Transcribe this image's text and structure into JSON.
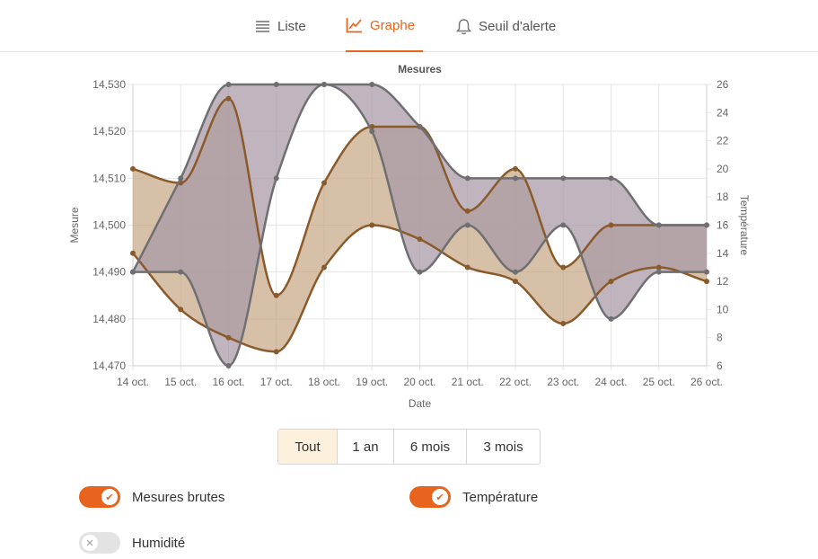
{
  "tabs": [
    {
      "label": "Liste",
      "icon": "list-icon",
      "active": false
    },
    {
      "label": "Graphe",
      "icon": "chart-line-icon",
      "active": true
    },
    {
      "label": "Seuil d'alerte",
      "icon": "bell-icon",
      "active": false
    }
  ],
  "colors": {
    "accent": "#e8641e",
    "temperature_line": "#8b5a2b",
    "temperature_fill": "#c4a27f",
    "mesures_line": "#6f6f72",
    "mesures_fill": "#a898a6",
    "overlap_fill": "#917b74"
  },
  "chart_data": {
    "type": "area",
    "title": "Mesures",
    "xlabel": "Date",
    "ylabel_left": "Mesure",
    "ylabel_right": "Température",
    "categories": [
      "14 oct.",
      "15 oct.",
      "16 oct.",
      "17 oct.",
      "18 oct.",
      "19 oct.",
      "20 oct.",
      "21 oct.",
      "22 oct.",
      "23 oct.",
      "24 oct.",
      "25 oct.",
      "26 oct."
    ],
    "ylim_left": [
      14470,
      14530
    ],
    "yticks_left": [
      "14,470",
      "14,480",
      "14,490",
      "14,500",
      "14,510",
      "14,520",
      "14,530"
    ],
    "ylim_right": [
      6,
      26
    ],
    "yticks_right": [
      "6",
      "8",
      "10",
      "12",
      "14",
      "16",
      "18",
      "20",
      "22",
      "24",
      "26"
    ],
    "grid": true,
    "legend": "none",
    "series": [
      {
        "name": "Mesures brutes",
        "axis": "left",
        "kind": "band",
        "upper": [
          14490,
          14510,
          14530,
          14530,
          14530,
          14530,
          14521,
          14510,
          14510,
          14510,
          14510,
          14500,
          14500
        ],
        "lower": [
          14490,
          14490,
          14470,
          14510,
          14530,
          14520,
          14490,
          14500,
          14490,
          14500,
          14480,
          14490,
          14490
        ]
      },
      {
        "name": "Température",
        "axis": "right",
        "kind": "band",
        "upper": [
          20,
          19,
          25,
          11,
          19,
          23,
          23,
          17,
          20,
          13,
          16,
          16,
          16
        ],
        "lower": [
          14,
          10,
          8,
          7,
          13,
          16,
          15,
          13,
          12,
          9,
          12,
          13,
          12
        ]
      }
    ]
  },
  "range": {
    "options": [
      "Tout",
      "1 an",
      "6 mois",
      "3 mois"
    ],
    "selected": "Tout"
  },
  "toggles": [
    {
      "label": "Mesures brutes",
      "on": true
    },
    {
      "label": "Température",
      "on": true
    },
    {
      "label": "Humidité",
      "on": false
    }
  ],
  "icons": {
    "check": "✔",
    "cross": "✕"
  }
}
